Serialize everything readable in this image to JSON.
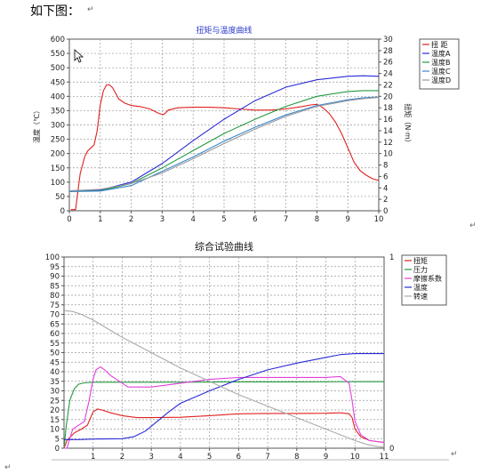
{
  "intro_text": "如下图：",
  "para_mark": "↵",
  "chart_data": [
    {
      "type": "line",
      "title": "扭矩与温度曲线",
      "ylabel": "温度（℃）",
      "y2label": "扭矩（N·m）",
      "xlim": [
        0,
        10
      ],
      "ylim": [
        0,
        600
      ],
      "y2lim": [
        0,
        30
      ],
      "x_ticks": [
        "0",
        "1",
        "2",
        "3",
        "4",
        "5",
        "6",
        "7",
        "8",
        "9",
        "10"
      ],
      "y_ticks": [
        "0",
        "50",
        "100",
        "150",
        "200",
        "250",
        "300",
        "350",
        "400",
        "450",
        "500",
        "550",
        "600"
      ],
      "y2_ticks": [
        "0",
        "2",
        "4",
        "6",
        "8",
        "10",
        "12",
        "14",
        "16",
        "18",
        "20",
        "22",
        "24",
        "26",
        "28",
        "30"
      ],
      "grid": true,
      "legend_position": "top-right",
      "series": [
        {
          "name": "扭  距",
          "color": "#e02020",
          "axis": "y2",
          "x": [
            0.05,
            0.2,
            0.35,
            0.5,
            0.6,
            0.7,
            0.8,
            0.9,
            1.0,
            1.1,
            1.2,
            1.3,
            1.4,
            1.5,
            1.6,
            1.8,
            2.0,
            2.3,
            2.6,
            2.9,
            3.05,
            3.2,
            3.5,
            4.0,
            4.5,
            5.0,
            5.5,
            6.0,
            6.5,
            7.0,
            7.5,
            7.8,
            8.0,
            8.2,
            8.4,
            8.6,
            8.8,
            9.0,
            9.2,
            9.4,
            9.6,
            9.8,
            10.0
          ],
          "y": [
            0.2,
            0.2,
            6.5,
            9.5,
            10.5,
            11.0,
            11.5,
            14.0,
            18.5,
            21.0,
            22.0,
            22.0,
            21.5,
            20.5,
            19.5,
            18.8,
            18.4,
            18.2,
            17.8,
            17.0,
            16.8,
            17.6,
            18.0,
            18.1,
            18.1,
            18.0,
            17.8,
            17.6,
            17.6,
            17.8,
            18.2,
            18.5,
            18.6,
            18.0,
            17.0,
            15.5,
            13.5,
            11.0,
            8.5,
            7.0,
            6.2,
            5.6,
            5.3
          ]
        },
        {
          "name": "温度A",
          "color": "#2a2ad8",
          "axis": "y",
          "x": [
            0,
            1,
            2,
            3,
            4,
            5,
            6,
            7,
            8,
            9,
            9.5,
            10
          ],
          "y": [
            70,
            72,
            100,
            165,
            245,
            320,
            385,
            432,
            458,
            470,
            472,
            470
          ]
        },
        {
          "name": "温度B",
          "color": "#239a40",
          "axis": "y",
          "x": [
            0,
            1,
            2,
            3,
            4,
            5,
            6,
            7,
            8,
            9,
            9.5,
            10
          ],
          "y": [
            68,
            70,
            95,
            150,
            210,
            270,
            320,
            365,
            400,
            417,
            420,
            420
          ]
        },
        {
          "name": "温度C",
          "color": "#3a87d0",
          "axis": "y",
          "x": [
            0,
            1,
            2,
            3,
            4,
            5,
            6,
            7,
            8,
            9,
            9.5,
            10
          ],
          "y": [
            67,
            69,
            88,
            138,
            188,
            243,
            292,
            335,
            368,
            388,
            395,
            398
          ]
        },
        {
          "name": "温度D",
          "color": "#999999",
          "axis": "y",
          "x": [
            0,
            1,
            2,
            3,
            4,
            5,
            6,
            7,
            8,
            9,
            9.5,
            10
          ],
          "y": [
            70,
            75,
            95,
            132,
            182,
            235,
            285,
            330,
            365,
            385,
            392,
            396
          ]
        }
      ]
    },
    {
      "type": "line",
      "title": "综合试验曲线",
      "xlim": [
        0,
        11
      ],
      "ylim": [
        0,
        100
      ],
      "y2lim": [
        0,
        1
      ],
      "x_ticks": [
        "1",
        "2",
        "3",
        "4",
        "5",
        "6",
        "7",
        "8",
        "9",
        "10",
        "11"
      ],
      "y_ticks": [
        "0",
        "5",
        "10",
        "15",
        "20",
        "25",
        "30",
        "35",
        "40",
        "45",
        "50",
        "55",
        "60",
        "65",
        "70",
        "75",
        "80",
        "85",
        "90",
        "95",
        "100"
      ],
      "y2_ticks": [
        "0",
        "1"
      ],
      "grid": true,
      "legend_position": "top-right",
      "series": [
        {
          "name": "扭矩",
          "color": "#e02020",
          "x": [
            0,
            0.1,
            0.35,
            0.6,
            0.8,
            1.0,
            1.15,
            1.3,
            1.6,
            2.0,
            2.5,
            3.0,
            4.0,
            5.0,
            6.0,
            7.0,
            8.0,
            9.0,
            9.5,
            9.8,
            9.9,
            10.0,
            10.2,
            10.5,
            11.0
          ],
          "y": [
            0,
            4,
            8,
            10,
            12,
            19,
            20.5,
            20,
            18.5,
            17,
            16,
            16,
            16.2,
            17,
            18,
            18.2,
            18.2,
            18.3,
            18.5,
            18,
            16,
            10,
            6,
            4,
            3
          ]
        },
        {
          "name": "压力",
          "color": "#239a40",
          "x": [
            0,
            0.08,
            0.2,
            0.35,
            0.5,
            0.7,
            1.0,
            2.0,
            4.0,
            6.0,
            8.0,
            10.0,
            11.0
          ],
          "y": [
            0,
            12,
            25,
            31,
            33.5,
            34.2,
            34.5,
            34.5,
            34.5,
            34.7,
            34.7,
            34.8,
            34.8
          ]
        },
        {
          "name": "摩擦系数",
          "color": "#e040e0",
          "x": [
            0,
            0.1,
            0.3,
            0.5,
            0.7,
            0.85,
            1.0,
            1.1,
            1.25,
            1.4,
            1.6,
            1.8,
            2.0,
            2.2,
            2.5,
            3.0,
            4.0,
            5.0,
            6.0,
            7.0,
            8.0,
            9.0,
            9.5,
            9.8,
            9.9,
            10.0,
            10.2,
            10.5,
            11.0
          ],
          "y": [
            0,
            0,
            10,
            12,
            14,
            24,
            36,
            41,
            42.5,
            41,
            38,
            36,
            34,
            32,
            32,
            32,
            34,
            36,
            37,
            37,
            37,
            37,
            37.5,
            34,
            25,
            14,
            7,
            4,
            3
          ]
        },
        {
          "name": "温度",
          "color": "#2a2ad8",
          "x": [
            0,
            0.5,
            1.0,
            2.0,
            2.4,
            2.8,
            3.2,
            3.6,
            4.0,
            5.0,
            6.0,
            7.0,
            8.0,
            9.0,
            9.5,
            10.0,
            11.0
          ],
          "y": [
            4.5,
            4.5,
            4.8,
            5,
            6,
            9,
            14,
            19,
            23.5,
            30,
            36,
            41,
            44.5,
            47.5,
            49,
            49.5,
            49.5
          ]
        },
        {
          "name": "转速",
          "color": "#aaaaaa",
          "axis": "y2",
          "x": [
            0,
            0.3,
            0.6,
            1.0,
            1.5,
            2.0,
            3.0,
            4.0,
            5.0,
            6.0,
            7.0,
            8.0,
            9.0,
            10.0,
            10.4,
            10.7,
            11.0
          ],
          "y": [
            0.72,
            0.715,
            0.7,
            0.67,
            0.625,
            0.58,
            0.5,
            0.42,
            0.35,
            0.28,
            0.22,
            0.16,
            0.1,
            0.04,
            0.02,
            0.01,
            0.005
          ]
        }
      ]
    }
  ]
}
